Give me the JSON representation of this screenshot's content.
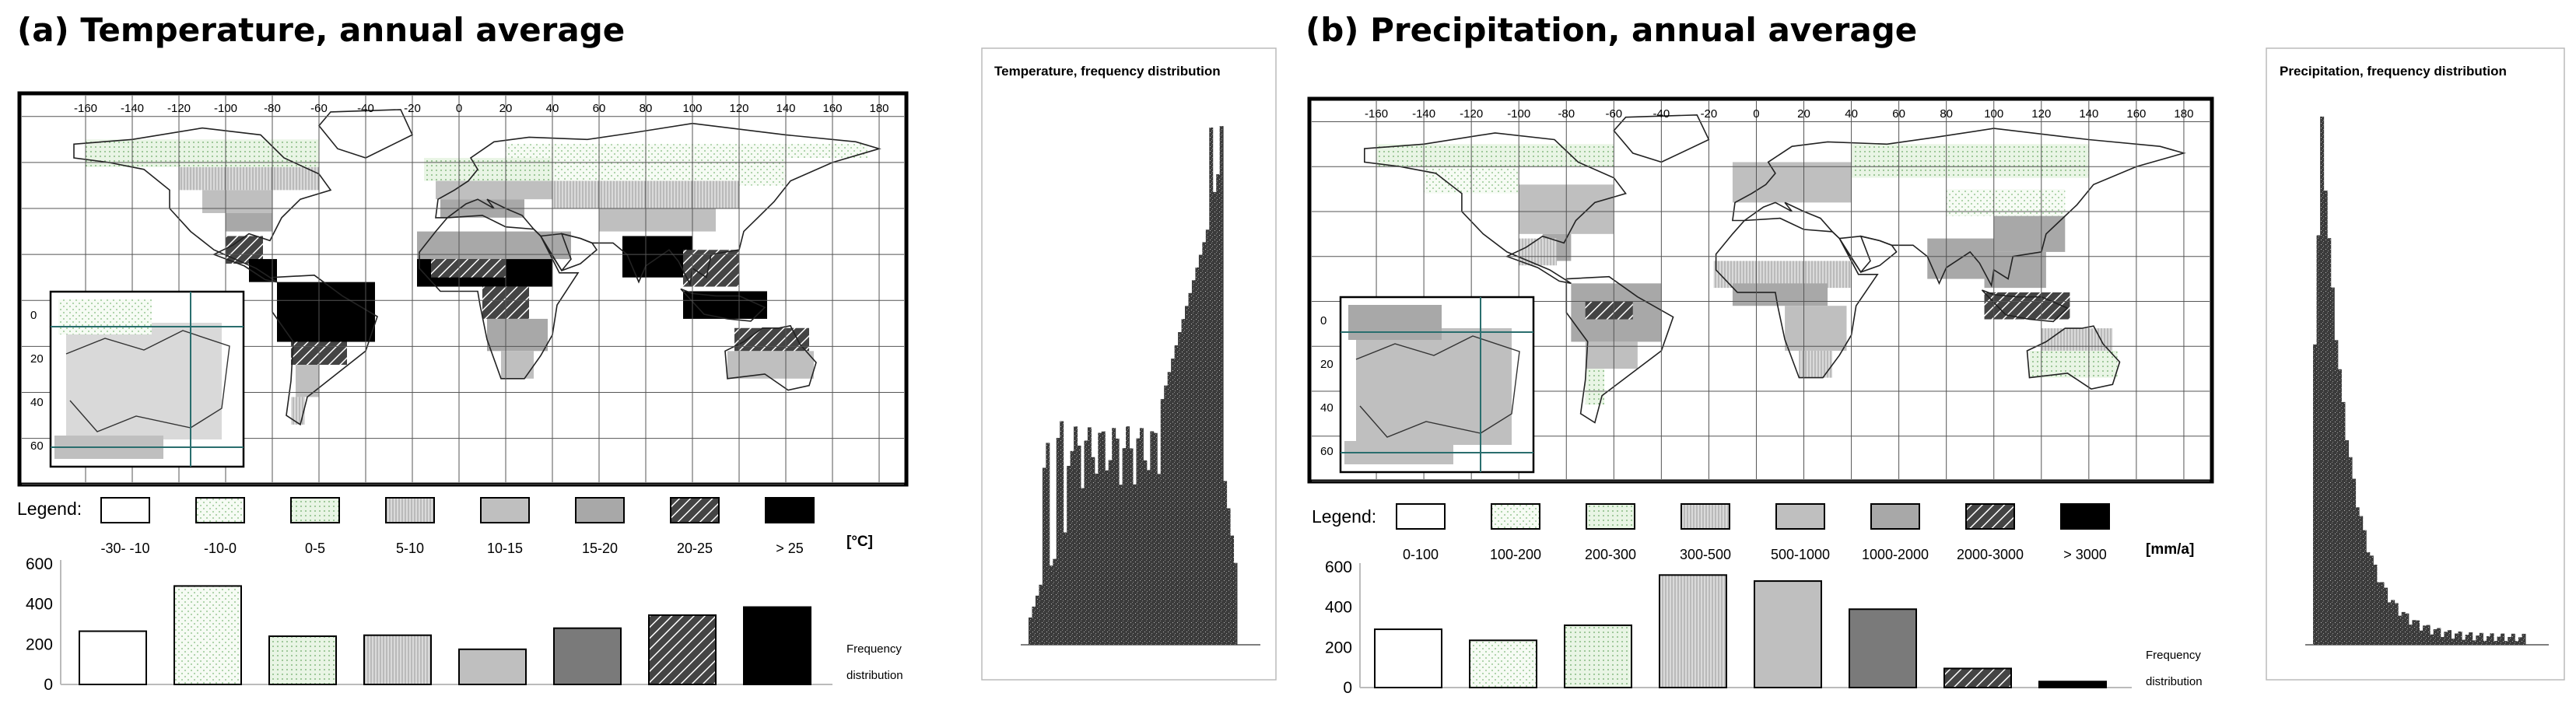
{
  "panels": [
    {
      "id": "a",
      "title": "(a) Temperature, annual average",
      "legend_label": "Legend:",
      "unit": "[°C]",
      "freq_label": [
        "Frequency",
        "distribution"
      ],
      "classes": [
        "-30- -10",
        "-10-0",
        "0-5",
        "5-10",
        "10-15",
        "15-20",
        "20-25",
        "> 25"
      ],
      "map_lon_ticks": [
        "-160",
        "-140",
        "-120",
        "-100",
        "-80",
        "-60",
        "-40",
        "-20",
        "0",
        "20",
        "40",
        "60",
        "80",
        "100",
        "120",
        "140",
        "160",
        "180"
      ],
      "inset_lat_ticks": [
        "0",
        "20",
        "40",
        "60"
      ],
      "hist_title": "Temperature, frequency distribution"
    },
    {
      "id": "b",
      "title": "(b) Precipitation, annual average",
      "legend_label": "Legend:",
      "unit": "[mm/a]",
      "freq_label": [
        "Frequency",
        "distribution"
      ],
      "classes": [
        "0-100",
        "100-200",
        "200-300",
        "300-500",
        "500-1000",
        "1000-2000",
        "2000-3000",
        "> 3000"
      ],
      "map_lon_ticks": [
        "-160",
        "-140",
        "-120",
        "-100",
        "-80",
        "-60",
        "-40",
        "-20",
        "0",
        "20",
        "40",
        "60",
        "80",
        "100",
        "120",
        "140",
        "160",
        "180"
      ],
      "inset_lat_ticks": [
        "0",
        "20",
        "40",
        "60"
      ],
      "hist_title": "Precipitation, frequency distribution"
    }
  ],
  "colors": {
    "c1": "#ffffff",
    "c2": "#f4faf2",
    "c3": "#e6f4e2",
    "c4": "#d9d9d9",
    "c5": "#bfbfbf",
    "c6": "#a8a8a8",
    "c7": "#3a3a3a",
    "c8": "#000000",
    "bar_dark": "#7a7a7a"
  },
  "chart_data": [
    {
      "type": "bar",
      "title": "",
      "categories": [
        "-30- -10",
        "-10-0",
        "0-5",
        "5-10",
        "10-15",
        "15-20",
        "20-25",
        "> 25"
      ],
      "values": [
        265,
        490,
        240,
        245,
        175,
        280,
        345,
        385
      ],
      "xlabel": "",
      "ylabel": "Frequency distribution",
      "ylim": [
        0,
        600
      ],
      "yticks": [
        0,
        200,
        400,
        600
      ],
      "grid": false
    },
    {
      "type": "bar",
      "title": "",
      "categories": [
        "0-100",
        "100-200",
        "200-300",
        "300-500",
        "500-1000",
        "1000-2000",
        "2000-3000",
        "> 3000"
      ],
      "values": [
        290,
        235,
        310,
        560,
        530,
        390,
        95,
        30
      ],
      "xlabel": "",
      "ylabel": "Frequency distribution",
      "ylim": [
        0,
        600
      ],
      "yticks": [
        0,
        200,
        400,
        600
      ],
      "grid": false
    }
  ]
}
